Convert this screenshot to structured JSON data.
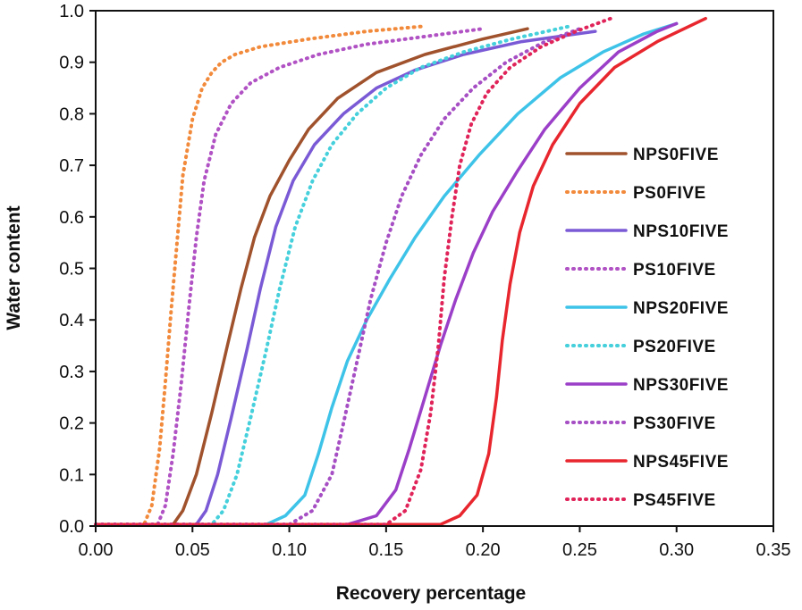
{
  "chart_data": {
    "type": "line",
    "title": "",
    "xlabel": "Recovery percentage",
    "ylabel": "Water content",
    "xlim": [
      0.0,
      0.35
    ],
    "ylim": [
      0.0,
      1.0
    ],
    "xticks": [
      "0.00",
      "0.05",
      "0.10",
      "0.15",
      "0.20",
      "0.25",
      "0.30",
      "0.35"
    ],
    "yticks": [
      "0.0",
      "0.1",
      "0.2",
      "0.3",
      "0.4",
      "0.5",
      "0.6",
      "0.7",
      "0.8",
      "0.9",
      "1.0"
    ],
    "legend_position": "right",
    "series": [
      {
        "name": "NPS0FIVE",
        "color": "#a0522d",
        "style": "solid",
        "x": [
          0.0,
          0.04,
          0.045,
          0.052,
          0.06,
          0.068,
          0.075,
          0.082,
          0.09,
          0.1,
          0.11,
          0.125,
          0.145,
          0.17,
          0.2,
          0.223
        ],
        "y": [
          0.003,
          0.003,
          0.03,
          0.1,
          0.22,
          0.35,
          0.46,
          0.56,
          0.64,
          0.71,
          0.77,
          0.83,
          0.88,
          0.915,
          0.945,
          0.965
        ]
      },
      {
        "name": "PS0FIVE",
        "color": "#f28a3c",
        "style": "dotted",
        "x": [
          0.0,
          0.025,
          0.029,
          0.033,
          0.036,
          0.039,
          0.042,
          0.045,
          0.05,
          0.055,
          0.06,
          0.065,
          0.072,
          0.085,
          0.11,
          0.14,
          0.17
        ],
        "y": [
          0.003,
          0.003,
          0.04,
          0.15,
          0.28,
          0.42,
          0.55,
          0.68,
          0.79,
          0.85,
          0.88,
          0.9,
          0.915,
          0.93,
          0.945,
          0.96,
          0.97
        ]
      },
      {
        "name": "NPS10FIVE",
        "color": "#7b5ad6",
        "style": "solid",
        "x": [
          0.0,
          0.052,
          0.057,
          0.063,
          0.07,
          0.078,
          0.085,
          0.093,
          0.102,
          0.113,
          0.128,
          0.145,
          0.165,
          0.19,
          0.22,
          0.258
        ],
        "y": [
          0.003,
          0.003,
          0.03,
          0.1,
          0.21,
          0.34,
          0.46,
          0.58,
          0.67,
          0.74,
          0.8,
          0.85,
          0.885,
          0.915,
          0.94,
          0.96
        ]
      },
      {
        "name": "PS10FIVE",
        "color": "#b152c4",
        "style": "dotted",
        "x": [
          0.0,
          0.032,
          0.036,
          0.04,
          0.044,
          0.048,
          0.052,
          0.056,
          0.062,
          0.07,
          0.08,
          0.095,
          0.115,
          0.14,
          0.17,
          0.2
        ],
        "y": [
          0.003,
          0.003,
          0.04,
          0.14,
          0.27,
          0.42,
          0.56,
          0.67,
          0.76,
          0.82,
          0.86,
          0.89,
          0.915,
          0.935,
          0.95,
          0.965
        ]
      },
      {
        "name": "NPS20FIVE",
        "color": "#3ec3e8",
        "style": "solid",
        "x": [
          0.0,
          0.088,
          0.098,
          0.108,
          0.115,
          0.122,
          0.13,
          0.14,
          0.152,
          0.165,
          0.18,
          0.198,
          0.218,
          0.24,
          0.262,
          0.283,
          0.3
        ],
        "y": [
          0.003,
          0.003,
          0.02,
          0.06,
          0.14,
          0.23,
          0.32,
          0.4,
          0.48,
          0.56,
          0.64,
          0.72,
          0.8,
          0.87,
          0.92,
          0.955,
          0.975
        ]
      },
      {
        "name": "PS20FIVE",
        "color": "#45d0dc",
        "style": "dotted",
        "x": [
          0.0,
          0.06,
          0.066,
          0.073,
          0.08,
          0.088,
          0.095,
          0.103,
          0.112,
          0.122,
          0.135,
          0.15,
          0.168,
          0.19,
          0.215,
          0.245
        ],
        "y": [
          0.003,
          0.003,
          0.03,
          0.1,
          0.21,
          0.34,
          0.46,
          0.58,
          0.67,
          0.74,
          0.8,
          0.85,
          0.89,
          0.92,
          0.945,
          0.97
        ]
      },
      {
        "name": "NPS30FIVE",
        "color": "#9b3fc8",
        "style": "solid",
        "x": [
          0.0,
          0.13,
          0.145,
          0.155,
          0.162,
          0.17,
          0.178,
          0.186,
          0.195,
          0.205,
          0.218,
          0.232,
          0.25,
          0.27,
          0.29,
          0.3
        ],
        "y": [
          0.003,
          0.003,
          0.02,
          0.07,
          0.15,
          0.25,
          0.35,
          0.44,
          0.53,
          0.61,
          0.69,
          0.77,
          0.85,
          0.92,
          0.96,
          0.975
        ]
      },
      {
        "name": "PS30FIVE",
        "color": "#a64fc4",
        "style": "dotted",
        "x": [
          0.0,
          0.1,
          0.112,
          0.122,
          0.128,
          0.135,
          0.142,
          0.15,
          0.158,
          0.168,
          0.18,
          0.195,
          0.212,
          0.232,
          0.25
        ],
        "y": [
          0.003,
          0.003,
          0.03,
          0.1,
          0.2,
          0.32,
          0.44,
          0.55,
          0.64,
          0.72,
          0.79,
          0.85,
          0.9,
          0.94,
          0.965
        ]
      },
      {
        "name": "NPS45FIVE",
        "color": "#e8262e",
        "style": "solid",
        "x": [
          0.0,
          0.178,
          0.188,
          0.197,
          0.203,
          0.207,
          0.21,
          0.214,
          0.219,
          0.226,
          0.236,
          0.25,
          0.268,
          0.29,
          0.315
        ],
        "y": [
          0.003,
          0.003,
          0.02,
          0.06,
          0.14,
          0.25,
          0.36,
          0.47,
          0.57,
          0.66,
          0.74,
          0.82,
          0.89,
          0.94,
          0.985
        ]
      },
      {
        "name": "PS45FIVE",
        "color": "#e0245a",
        "style": "dotted",
        "x": [
          0.0,
          0.15,
          0.16,
          0.168,
          0.173,
          0.177,
          0.18,
          0.184,
          0.188,
          0.194,
          0.202,
          0.214,
          0.23,
          0.248,
          0.266
        ],
        "y": [
          0.003,
          0.003,
          0.03,
          0.11,
          0.22,
          0.35,
          0.48,
          0.6,
          0.7,
          0.78,
          0.84,
          0.89,
          0.93,
          0.96,
          0.985
        ]
      }
    ]
  }
}
